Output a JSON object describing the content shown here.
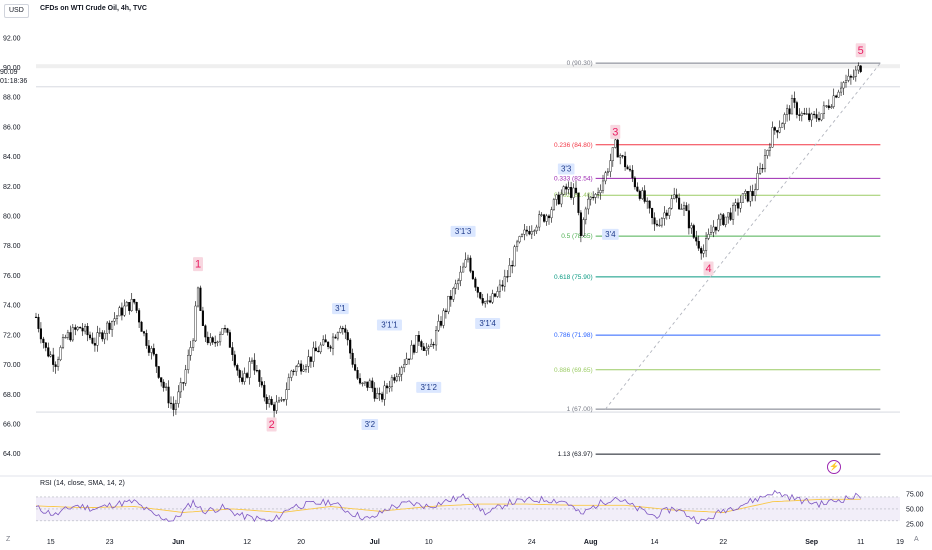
{
  "header": {
    "currency": "USD",
    "symbol_title": "CFDs on WTI Crude Oil, 4h, TVC"
  },
  "current_price": {
    "value": "90.09",
    "countdown": "01:18:36"
  },
  "rsi": {
    "title": "RSI (14, close, SMA, 14, 2)"
  },
  "footer": {
    "left_btn": "Z",
    "right_btn": "A"
  },
  "alert_icon": "lightning-icon",
  "colors": {
    "up_candle": "#ffffff",
    "down_candle": "#000000",
    "wave_label": "#e91e63",
    "wave_label_bg": "#f8d7e0",
    "sub_label": "#2962ff",
    "sub_label_bg": "#dbe7ff",
    "rsi_line": "#7e57c2",
    "rsi_ma": "#f9c847",
    "rsi_band": "#ede7f6"
  },
  "chart_data": {
    "type": "candlestick",
    "y_axis": {
      "ylim": [
        62.9,
        93.2
      ],
      "ticks": [
        "92.00",
        "90.00",
        "88.00",
        "86.00",
        "84.00",
        "82.00",
        "80.00",
        "78.00",
        "76.00",
        "74.00",
        "72.00",
        "70.00",
        "68.00",
        "66.00",
        "64.00"
      ]
    },
    "x_axis": {
      "ticks": [
        "15",
        "23",
        "Jun",
        "12",
        "20",
        "Jul",
        "10",
        "24",
        "Aug",
        "14",
        "22",
        "Sep",
        "11",
        "19"
      ]
    },
    "price_path": [
      [
        0,
        73.2
      ],
      [
        2,
        71.0
      ],
      [
        4,
        70.2
      ],
      [
        6,
        71.8
      ],
      [
        9,
        72.5
      ],
      [
        12,
        71.5
      ],
      [
        15,
        72.8
      ],
      [
        18,
        73.8
      ],
      [
        20,
        74.2
      ],
      [
        22,
        72.0
      ],
      [
        24,
        70.5
      ],
      [
        26,
        68.5
      ],
      [
        28,
        67.0
      ],
      [
        30,
        68.8
      ],
      [
        32,
        72.0
      ],
      [
        33,
        75.0
      ],
      [
        34,
        72.2
      ],
      [
        36,
        71.2
      ],
      [
        38,
        72.6
      ],
      [
        40,
        71.0
      ],
      [
        42,
        68.5
      ],
      [
        44,
        70.5
      ],
      [
        46,
        68.2
      ],
      [
        48,
        67.2
      ],
      [
        50,
        67.3
      ],
      [
        52,
        69.6
      ],
      [
        54,
        70.0
      ],
      [
        56,
        70.5
      ],
      [
        58,
        71.2
      ],
      [
        60,
        71.5
      ],
      [
        62,
        72.8
      ],
      [
        63,
        72.2
      ],
      [
        64,
        70.8
      ],
      [
        66,
        68.5
      ],
      [
        68,
        68.7
      ],
      [
        70,
        67.6
      ],
      [
        72,
        68.8
      ],
      [
        74,
        69.8
      ],
      [
        76,
        70.7
      ],
      [
        78,
        71.8
      ],
      [
        80,
        70.8
      ],
      [
        82,
        72.5
      ],
      [
        84,
        74.2
      ],
      [
        86,
        75.6
      ],
      [
        88,
        77.2
      ],
      [
        89,
        76.0
      ],
      [
        90,
        75.0
      ],
      [
        92,
        74.0
      ],
      [
        94,
        74.8
      ],
      [
        96,
        76.0
      ],
      [
        98,
        78.0
      ],
      [
        100,
        79.0
      ],
      [
        102,
        79.6
      ],
      [
        104,
        80.1
      ],
      [
        106,
        81.0
      ],
      [
        108,
        81.8
      ],
      [
        110,
        81.4
      ],
      [
        111,
        78.6
      ],
      [
        112,
        80.8
      ],
      [
        114,
        81.4
      ],
      [
        116,
        82.8
      ],
      [
        118,
        84.7
      ],
      [
        120,
        83.5
      ],
      [
        122,
        82.2
      ],
      [
        124,
        81.0
      ],
      [
        126,
        79.3
      ],
      [
        128,
        80.2
      ],
      [
        130,
        81.3
      ],
      [
        132,
        80.5
      ],
      [
        134,
        78.6
      ],
      [
        136,
        77.7
      ],
      [
        138,
        79.3
      ],
      [
        140,
        79.8
      ],
      [
        142,
        80.3
      ],
      [
        144,
        81.2
      ],
      [
        146,
        81.5
      ],
      [
        148,
        83.5
      ],
      [
        150,
        85.6
      ],
      [
        152,
        86.4
      ],
      [
        154,
        87.5
      ],
      [
        156,
        86.8
      ],
      [
        158,
        86.5
      ],
      [
        160,
        86.9
      ],
      [
        162,
        87.8
      ],
      [
        164,
        88.9
      ],
      [
        166,
        89.2
      ],
      [
        168,
        90.1
      ]
    ],
    "wave_labels": [
      {
        "label": "1",
        "x": 33,
        "y": 76.8,
        "type": "primary"
      },
      {
        "label": "2",
        "x": 48,
        "y": 66.0,
        "type": "primary"
      },
      {
        "label": "3",
        "x": 118,
        "y": 85.7,
        "type": "primary"
      },
      {
        "label": "4",
        "x": 137,
        "y": 76.5,
        "type": "primary"
      },
      {
        "label": "5",
        "x": 168,
        "y": 91.2,
        "type": "primary"
      },
      {
        "label": "3'1",
        "x": 62,
        "y": 73.8,
        "type": "sub"
      },
      {
        "label": "3'2",
        "x": 68,
        "y": 66.0,
        "type": "sub"
      },
      {
        "label": "3'1'1",
        "x": 72,
        "y": 72.7,
        "type": "sub"
      },
      {
        "label": "3'1'2",
        "x": 80,
        "y": 68.5,
        "type": "sub"
      },
      {
        "label": "3'1'3",
        "x": 87,
        "y": 79.0,
        "type": "sub"
      },
      {
        "label": "3'1'4",
        "x": 92,
        "y": 72.8,
        "type": "sub"
      },
      {
        "label": "3'3",
        "x": 108,
        "y": 83.2,
        "type": "sub"
      },
      {
        "label": "3'4",
        "x": 117,
        "y": 78.8,
        "type": "sub"
      }
    ],
    "fib_levels": [
      {
        "ratio": "0",
        "price": 90.3,
        "label": "0 (90.30)",
        "color": "#787b86"
      },
      {
        "ratio": "0.236",
        "price": 84.8,
        "label": "0.236 (84.80)",
        "color": "#f23645"
      },
      {
        "ratio": "0.333",
        "price": 82.54,
        "label": "0.333 (82.54)",
        "color": "#9c27b0"
      },
      {
        "ratio": "0.382",
        "price": 81.4,
        "label": "0.382 (81.40)",
        "color": "#9ccc65"
      },
      {
        "ratio": "0.5",
        "price": 78.65,
        "label": "0.5 (78.65)",
        "color": "#4caf50"
      },
      {
        "ratio": "0.618",
        "price": 75.9,
        "label": "0.618 (75.90)",
        "color": "#089981"
      },
      {
        "ratio": "0.786",
        "price": 71.98,
        "label": "0.786 (71.98)",
        "color": "#2962ff"
      },
      {
        "ratio": "0.886",
        "price": 69.65,
        "label": "0.886 (69.65)",
        "color": "#9ccc65"
      },
      {
        "ratio": "1",
        "price": 67.0,
        "label": "1 (67.00)",
        "color": "#787b86"
      },
      {
        "ratio": "1.13",
        "price": 63.97,
        "label": "1.13 (63.97)",
        "color": "#131722"
      }
    ],
    "fib_range_x": [
      106,
      176
    ],
    "trendline": {
      "from": [
        106,
        67.0
      ],
      "to": [
        176,
        90.3
      ]
    },
    "rsi": {
      "ylim": [
        18,
        85
      ],
      "ticks": [
        "75.00",
        "50.00",
        "25.00"
      ],
      "upper": 70,
      "lower": 30,
      "path": [
        [
          0,
          52
        ],
        [
          4,
          40
        ],
        [
          8,
          56
        ],
        [
          12,
          50
        ],
        [
          16,
          58
        ],
        [
          20,
          62
        ],
        [
          24,
          40
        ],
        [
          28,
          30
        ],
        [
          32,
          62
        ],
        [
          34,
          46
        ],
        [
          38,
          52
        ],
        [
          42,
          38
        ],
        [
          46,
          32
        ],
        [
          48,
          28
        ],
        [
          52,
          54
        ],
        [
          56,
          58
        ],
        [
          60,
          62
        ],
        [
          64,
          44
        ],
        [
          68,
          32
        ],
        [
          72,
          52
        ],
        [
          76,
          60
        ],
        [
          80,
          54
        ],
        [
          84,
          64
        ],
        [
          88,
          72
        ],
        [
          90,
          52
        ],
        [
          92,
          42
        ],
        [
          96,
          60
        ],
        [
          100,
          64
        ],
        [
          104,
          66
        ],
        [
          108,
          62
        ],
        [
          111,
          40
        ],
        [
          114,
          56
        ],
        [
          118,
          70
        ],
        [
          122,
          52
        ],
        [
          126,
          38
        ],
        [
          130,
          52
        ],
        [
          134,
          34
        ],
        [
          136,
          28
        ],
        [
          140,
          48
        ],
        [
          144,
          58
        ],
        [
          148,
          70
        ],
        [
          150,
          78
        ],
        [
          152,
          74
        ],
        [
          156,
          64
        ],
        [
          160,
          58
        ],
        [
          164,
          66
        ],
        [
          168,
          72
        ]
      ],
      "ma_path": [
        [
          0,
          55
        ],
        [
          10,
          52
        ],
        [
          20,
          54
        ],
        [
          30,
          44
        ],
        [
          40,
          50
        ],
        [
          50,
          44
        ],
        [
          60,
          54
        ],
        [
          70,
          46
        ],
        [
          80,
          54
        ],
        [
          90,
          58
        ],
        [
          100,
          58
        ],
        [
          110,
          56
        ],
        [
          120,
          56
        ],
        [
          130,
          48
        ],
        [
          140,
          44
        ],
        [
          150,
          62
        ],
        [
          160,
          66
        ],
        [
          168,
          66
        ]
      ]
    }
  }
}
